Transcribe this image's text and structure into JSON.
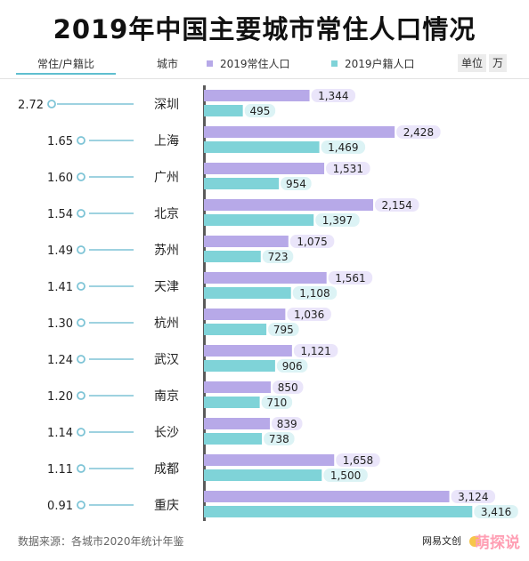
{
  "colors": {
    "resident": "#b7a9e8",
    "hukou": "#7fd3d8",
    "label_bg_resident": "#eae5fa",
    "label_bg_hukou": "#dcf3f5",
    "ratio_line": "#7ec4d6"
  },
  "header": {
    "ratio_label": "常住/户籍比",
    "city_label": "城市",
    "legend_resident": "2019常住人口",
    "legend_hukou": "2019户籍人口",
    "unit_label": "单位",
    "unit_value": "万"
  },
  "footer": {
    "source": "数据来源：各城市2020年统计年鉴",
    "brand": "网易文创",
    "watermark": "萌探说"
  },
  "chart_data": {
    "type": "bar",
    "title": "2019年中国主要城市常住人口情况",
    "orientation": "horizontal",
    "categories": [
      "深圳",
      "上海",
      "广州",
      "北京",
      "苏州",
      "天津",
      "杭州",
      "武汉",
      "南京",
      "长沙",
      "成都",
      "重庆"
    ],
    "series": [
      {
        "name": "2019常住人口",
        "values": [
          1344,
          2428,
          1531,
          2154,
          1075,
          1561,
          1036,
          1121,
          850,
          839,
          1658,
          3124
        ]
      },
      {
        "name": "2019户籍人口",
        "values": [
          495,
          1469,
          954,
          1397,
          723,
          1108,
          795,
          906,
          710,
          738,
          1500,
          3416
        ]
      }
    ],
    "ratio_labels": [
      "2.72",
      "1.65",
      "1.60",
      "1.54",
      "1.49",
      "1.41",
      "1.30",
      "1.24",
      "1.20",
      "1.14",
      "1.11",
      "0.91"
    ],
    "ratio_values": [
      2.72,
      1.65,
      1.6,
      1.54,
      1.49,
      1.41,
      1.3,
      1.24,
      1.2,
      1.14,
      1.11,
      0.91
    ],
    "value_labels_resident": [
      "1,344",
      "2,428",
      "1,531",
      "2,154",
      "1,075",
      "1,561",
      "1,036",
      "1,121",
      "850",
      "839",
      "1,658",
      "3,124"
    ],
    "value_labels_hukou": [
      "495",
      "1,469",
      "954",
      "1,397",
      "723",
      "1,108",
      "795",
      "906",
      "710",
      "738",
      "1,500",
      "3,416"
    ],
    "unit": "万"
  }
}
